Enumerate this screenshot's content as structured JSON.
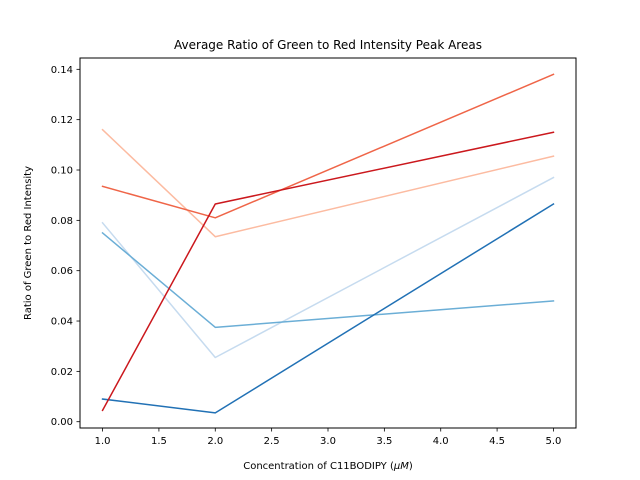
{
  "chart_data": {
    "type": "line",
    "title": "Average Ratio of Green to Red Intensity Peak Areas",
    "xlabel_prefix": "Concentration of C11BODIPY (",
    "xlabel_unit": "μM",
    "xlabel_suffix": ")",
    "ylabel": "Ratio of Green to Red Intensity",
    "x": [
      1.0,
      2.0,
      5.0
    ],
    "xlim": [
      0.8,
      5.2
    ],
    "ylim": [
      -0.0025,
      0.1445
    ],
    "xticks": [
      1.0,
      1.5,
      2.0,
      2.5,
      3.0,
      3.5,
      4.0,
      4.5,
      5.0
    ],
    "xtick_labels": [
      "1.0",
      "1.5",
      "2.0",
      "2.5",
      "3.0",
      "3.5",
      "4.0",
      "4.5",
      "5.0"
    ],
    "yticks": [
      0.0,
      0.02,
      0.04,
      0.06,
      0.08,
      0.1,
      0.12,
      0.14
    ],
    "ytick_labels": [
      "0.00",
      "0.02",
      "0.04",
      "0.06",
      "0.08",
      "0.10",
      "0.12",
      "0.14"
    ],
    "grid": false,
    "legend": "none",
    "series": [
      {
        "color": "#c6dbef",
        "values": [
          0.079,
          0.0255,
          0.097
        ]
      },
      {
        "color": "#6baed6",
        "values": [
          0.075,
          0.0375,
          0.048
        ]
      },
      {
        "color": "#2171b5",
        "values": [
          0.009,
          0.0035,
          0.0865
        ]
      },
      {
        "color": "#fcbba1",
        "values": [
          0.116,
          0.0735,
          0.1055
        ]
      },
      {
        "color": "#ef6548",
        "values": [
          0.0935,
          0.081,
          0.138
        ]
      },
      {
        "color": "#cb181d",
        "values": [
          0.0045,
          0.0865,
          0.115
        ]
      }
    ]
  }
}
